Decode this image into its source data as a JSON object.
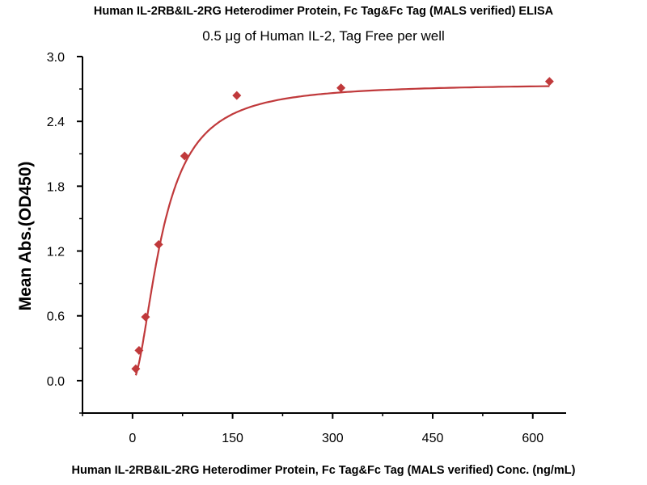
{
  "chart_data": {
    "type": "scatter",
    "title": "Human IL-2RB&IL-2RG Heterodimer Protein, Fc Tag&Fc Tag (MALS verified) ELISA",
    "subtitle": "0.5 μg of Human IL-2, Tag Free per well",
    "xlabel": "Human IL-2RB&IL-2RG Heterodimer Protein, Fc Tag&Fc Tag (MALS verified) Conc. (ng/mL)",
    "ylabel": "Mean Abs.(OD450)",
    "xlim": [
      -75,
      650
    ],
    "ylim": [
      -0.3,
      3.0
    ],
    "xticks": [
      0,
      150,
      300,
      450,
      600
    ],
    "xtick_labels": [
      "0",
      "150",
      "300",
      "450",
      "600"
    ],
    "yticks": [
      0.0,
      0.6,
      1.2,
      1.8,
      2.4,
      3.0
    ],
    "ytick_labels": [
      "0.0",
      "0.6",
      "1.2",
      "1.8",
      "2.4",
      "3.0"
    ],
    "grid": false,
    "series": [
      {
        "name": "Mean Abs.",
        "marker": "diamond",
        "color": "#c0393b",
        "x": [
          4.88,
          9.77,
          19.5,
          39.1,
          78.1,
          156.3,
          312.5,
          625
        ],
        "y": [
          0.11,
          0.28,
          0.59,
          1.26,
          2.08,
          2.64,
          2.71,
          2.77
        ]
      }
    ],
    "fit": {
      "type": "4PL",
      "bottom": 0,
      "top": 2.75,
      "ec50": 45,
      "hill": 1.8,
      "color": "#c0393b"
    }
  }
}
